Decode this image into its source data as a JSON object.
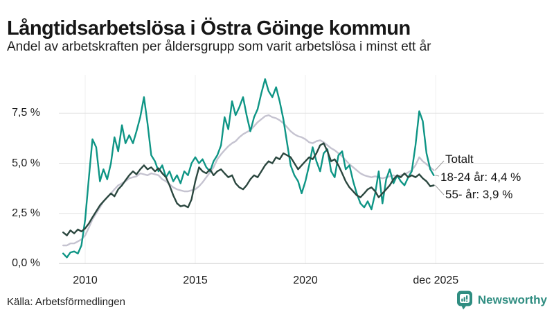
{
  "header": {
    "title": "Långtidsarbetslösa i Östra Göinge kommun",
    "subtitle": "Andel av arbetskraften per åldersgrupp som varit arbetslösa i minst ett år"
  },
  "annotations": {
    "totalt": "Totalt",
    "young": "18-24 år: 4,4 %",
    "old": "55- år: 3,9 %"
  },
  "footer": {
    "source": "Källa: Arbetsförmedlingen",
    "brand": "Newsworthy"
  },
  "colors": {
    "young_line": "#0e9585",
    "totalt_line": "#c5c3d0",
    "old_line": "#2b473f",
    "gridline": "#e2e2e2",
    "zeroline": "#c9c9c9",
    "vertical_gridline": "#efefef",
    "leader": "#9a9a9a",
    "brand_teal": "#2f8d81"
  },
  "chart_data": {
    "type": "line",
    "title": "Långtidsarbetslösa i Östra Göinge kommun",
    "subtitle": "Andel av arbetskraften per åldersgrupp som varit arbetslösa i minst ett år",
    "ylabel": "",
    "xlabel": "",
    "ylim": [
      0,
      9.5
    ],
    "xlim": [
      2008.8,
      2026.0
    ],
    "grid": true,
    "legend_position": "end-of-line labels, right side",
    "yticks": [
      {
        "v": 0.0,
        "label": "0,0 %"
      },
      {
        "v": 2.5,
        "label": "2,5 %"
      },
      {
        "v": 5.0,
        "label": "5,0 %"
      },
      {
        "v": 7.5,
        "label": "7,5 %"
      }
    ],
    "xticks": [
      {
        "t": 2010.0,
        "label": "2010"
      },
      {
        "t": 2015.0,
        "label": "2015"
      },
      {
        "t": 2020.0,
        "label": "2020"
      },
      {
        "t": 2025.92,
        "label": "dec 2025"
      }
    ],
    "x": [
      2009.0,
      2009.17,
      2009.33,
      2009.5,
      2009.67,
      2009.83,
      2010.0,
      2010.17,
      2010.33,
      2010.5,
      2010.67,
      2010.83,
      2011.0,
      2011.17,
      2011.33,
      2011.5,
      2011.67,
      2011.83,
      2012.0,
      2012.17,
      2012.33,
      2012.5,
      2012.67,
      2012.83,
      2013.0,
      2013.17,
      2013.33,
      2013.5,
      2013.67,
      2013.83,
      2014.0,
      2014.17,
      2014.33,
      2014.5,
      2014.67,
      2014.83,
      2015.0,
      2015.17,
      2015.33,
      2015.5,
      2015.67,
      2015.83,
      2016.0,
      2016.17,
      2016.33,
      2016.5,
      2016.67,
      2016.83,
      2017.0,
      2017.17,
      2017.33,
      2017.5,
      2017.67,
      2017.83,
      2018.0,
      2018.17,
      2018.33,
      2018.5,
      2018.67,
      2018.83,
      2019.0,
      2019.17,
      2019.33,
      2019.5,
      2019.67,
      2019.83,
      2020.0,
      2020.17,
      2020.33,
      2020.5,
      2020.67,
      2020.83,
      2021.0,
      2021.17,
      2021.33,
      2021.5,
      2021.67,
      2021.83,
      2022.0,
      2022.17,
      2022.33,
      2022.5,
      2022.67,
      2022.83,
      2023.0,
      2023.17,
      2023.33,
      2023.5,
      2023.67,
      2023.83,
      2024.0,
      2024.17,
      2024.33,
      2024.5,
      2024.67,
      2024.83,
      2025.0,
      2025.17,
      2025.33,
      2025.5,
      2025.67,
      2025.83
    ],
    "series": [
      {
        "name": "Totalt",
        "end_value_label": null,
        "values": [
          0.9,
          0.9,
          1.0,
          1.0,
          1.1,
          1.2,
          1.4,
          1.8,
          2.2,
          2.5,
          2.8,
          3.1,
          3.3,
          3.5,
          3.7,
          3.9,
          4.0,
          4.1,
          4.25,
          4.3,
          4.35,
          4.5,
          4.45,
          4.4,
          4.5,
          4.45,
          4.4,
          4.2,
          4.1,
          3.95,
          3.8,
          3.7,
          3.65,
          3.6,
          3.6,
          3.65,
          3.7,
          3.85,
          4.05,
          4.3,
          4.55,
          4.8,
          5.2,
          5.45,
          5.65,
          5.85,
          6.0,
          6.1,
          6.3,
          6.45,
          6.55,
          6.65,
          6.85,
          7.05,
          7.2,
          7.35,
          7.4,
          7.3,
          7.25,
          7.15,
          7.0,
          6.8,
          6.6,
          6.45,
          6.35,
          6.3,
          6.2,
          6.05,
          6.0,
          6.1,
          6.15,
          6.05,
          5.9,
          5.75,
          5.65,
          5.5,
          5.35,
          5.15,
          4.95,
          4.8,
          4.65,
          4.5,
          4.4,
          4.35,
          4.3,
          4.35,
          4.3,
          4.25,
          4.3,
          4.35,
          4.4,
          4.3,
          4.4,
          4.45,
          4.55,
          4.65,
          4.9,
          5.3,
          5.1,
          4.95,
          4.8,
          4.65
        ]
      },
      {
        "name": "18-24 år",
        "end_value_label": "4,4 %",
        "values": [
          0.5,
          0.3,
          0.55,
          0.6,
          0.5,
          0.9,
          2.2,
          4.3,
          6.2,
          5.8,
          4.1,
          4.7,
          4.2,
          5.0,
          6.3,
          5.6,
          6.9,
          6.0,
          6.4,
          6.0,
          6.6,
          7.3,
          8.3,
          7.0,
          5.4,
          5.1,
          4.6,
          4.9,
          4.3,
          4.6,
          4.1,
          4.4,
          4.0,
          4.6,
          4.4,
          5.0,
          5.3,
          5.0,
          5.2,
          4.8,
          4.6,
          5.1,
          5.4,
          5.9,
          7.3,
          6.7,
          8.1,
          7.4,
          7.8,
          8.3,
          7.4,
          6.6,
          7.3,
          7.7,
          8.5,
          9.2,
          8.6,
          8.3,
          8.8,
          8.1,
          7.2,
          6.0,
          4.9,
          4.4,
          4.1,
          3.5,
          4.1,
          4.9,
          5.8,
          5.1,
          4.6,
          5.5,
          5.7,
          4.6,
          4.3,
          5.4,
          5.6,
          4.7,
          4.9,
          4.1,
          3.5,
          3.0,
          2.8,
          3.1,
          2.7,
          3.5,
          4.6,
          3.0,
          4.2,
          4.7,
          4.0,
          4.4,
          4.1,
          3.9,
          4.3,
          4.6,
          5.9,
          7.6,
          7.1,
          5.5,
          4.7,
          4.4
        ]
      },
      {
        "name": "55- år",
        "end_value_label": "3,9 %",
        "values": [
          1.55,
          1.4,
          1.65,
          1.5,
          1.7,
          1.6,
          1.75,
          2.0,
          2.3,
          2.6,
          2.9,
          3.1,
          3.3,
          3.5,
          3.35,
          3.7,
          3.9,
          4.15,
          4.4,
          4.6,
          4.45,
          4.7,
          4.9,
          4.7,
          4.8,
          4.6,
          4.75,
          4.5,
          4.3,
          3.9,
          3.4,
          3.0,
          2.85,
          2.9,
          2.8,
          3.2,
          4.1,
          4.8,
          4.6,
          4.5,
          4.7,
          4.4,
          4.6,
          4.7,
          4.5,
          4.3,
          4.4,
          4.0,
          3.8,
          3.7,
          3.9,
          4.2,
          4.4,
          4.3,
          4.6,
          4.9,
          5.1,
          5.0,
          5.3,
          5.2,
          5.5,
          5.4,
          5.3,
          5.0,
          4.7,
          4.9,
          5.1,
          5.3,
          5.2,
          5.5,
          5.9,
          6.0,
          5.6,
          5.1,
          5.2,
          4.9,
          4.5,
          4.1,
          3.8,
          3.6,
          3.4,
          3.3,
          3.5,
          3.7,
          3.8,
          3.6,
          3.3,
          3.5,
          3.7,
          3.9,
          4.2,
          4.4,
          4.3,
          4.5,
          4.3,
          4.4,
          4.3,
          4.45,
          4.25,
          4.1,
          3.85,
          3.9
        ]
      }
    ]
  }
}
